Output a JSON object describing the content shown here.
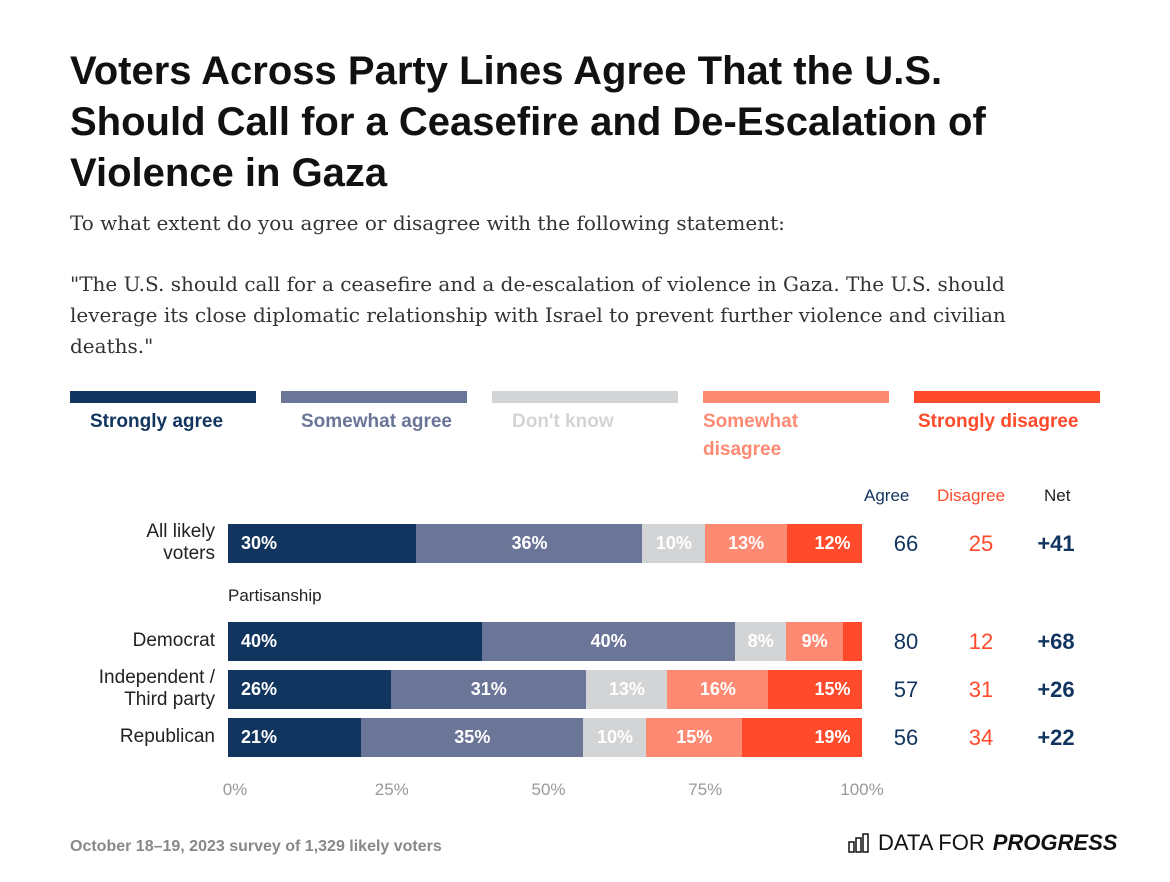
{
  "title": "Voters Across Party Lines Agree That the U.S. Should Call for a Ceasefire and De-Escalation of Violence in Gaza",
  "question": "To what extent do you agree or disagree with the following statement:",
  "statement": "\"The U.S. should call for a ceasefire and a de-escalation of violence in Gaza. The U.S. should leverage its close diplomatic relationship with Israel to prevent further violence and civilian deaths.\"",
  "footer": "October 18–19, 2023 survey of 1,329 likely voters",
  "logo": {
    "text_light": "DATA FOR",
    "text_bold": "PROGRESS",
    "icon": "bar-chart-icon"
  },
  "chart_data": {
    "type": "bar",
    "orientation": "horizontal-stacked",
    "legend": [
      "Strongly agree",
      "Somewhat agree",
      "Don't know",
      "Somewhat disagree",
      "Strongly disagree"
    ],
    "colors": [
      "#12355f",
      "#6a7597",
      "#d3d4d6",
      "#ff8a73",
      "#ff4a2b"
    ],
    "legend_text_colors": [
      "#12355f",
      "#6a7597",
      "#d3d4d6",
      "#ff8a73",
      "#ff4a2b"
    ],
    "group_label": "Partisanship",
    "categories": [
      "All likely voters",
      "Democrat",
      "Independent / Third party",
      "Republican"
    ],
    "values": [
      [
        30,
        36,
        10,
        13,
        12
      ],
      [
        40,
        40,
        8,
        9,
        3
      ],
      [
        26,
        31,
        13,
        16,
        15
      ],
      [
        21,
        35,
        10,
        15,
        19
      ]
    ],
    "labels": [
      [
        "30%",
        "36%",
        "10%",
        "13%",
        "12%"
      ],
      [
        "40%",
        "40%",
        "8%",
        "9%",
        ""
      ],
      [
        "26%",
        "31%",
        "13%",
        "16%",
        "15%"
      ],
      [
        "21%",
        "35%",
        "10%",
        "15%",
        "19%"
      ]
    ],
    "summary_headers": {
      "agree": "Agree",
      "disagree": "Disagree",
      "net": "Net"
    },
    "agree": [
      "66",
      "80",
      "57",
      "56"
    ],
    "disagree": [
      "25",
      "12",
      "31",
      "34"
    ],
    "net": [
      "+41",
      "+68",
      "+26",
      "+22"
    ],
    "xticks": [
      "0%",
      "25%",
      "50%",
      "75%",
      "100%"
    ],
    "xlim": [
      0,
      100
    ]
  }
}
